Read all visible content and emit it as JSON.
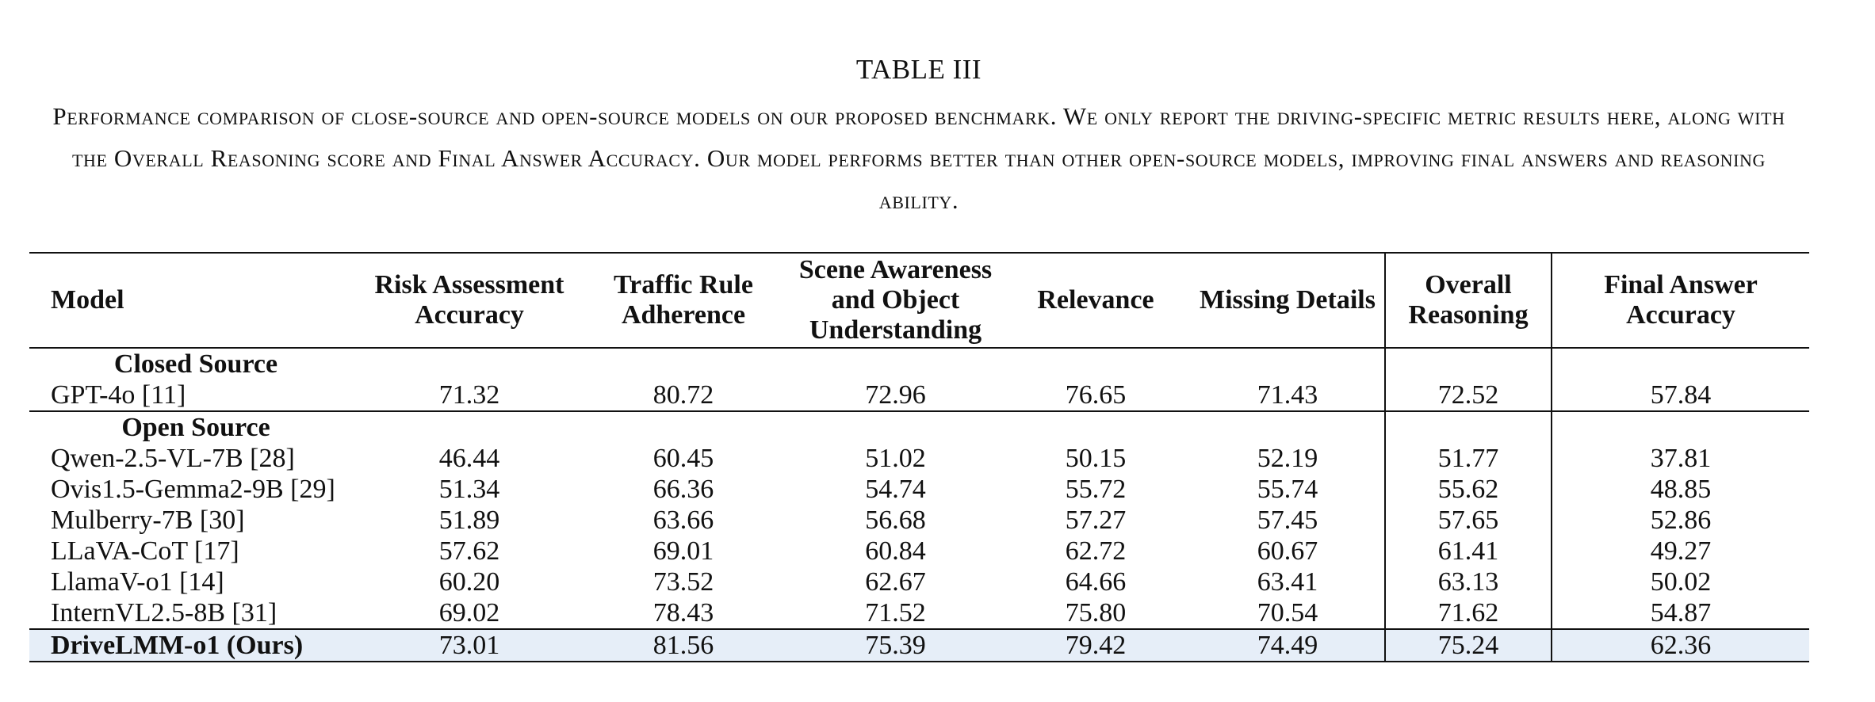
{
  "table_number": "TABLE III",
  "caption": "Performance comparison of close-source and open-source models on our proposed benchmark. We only report the driving-specific metric results here, along with the Overall Reasoning score and Final Answer Accuracy. Our model performs better than other open-source models, improving final answers and reasoning ability.",
  "columns": [
    "Model",
    "Risk Assessment Accuracy",
    "Traffic Rule Adherence",
    "Scene Awareness and Object Understanding",
    "Relevance",
    "Missing Details",
    "Overall Reasoning",
    "Final Answer Accuracy"
  ],
  "sections": [
    {
      "label": "Closed Source",
      "rows": [
        [
          "GPT-4o [11]",
          "71.32",
          "80.72",
          "72.96",
          "76.65",
          "71.43",
          "72.52",
          "57.84"
        ]
      ]
    },
    {
      "label": "Open Source",
      "rows": [
        [
          "Qwen-2.5-VL-7B [28]",
          "46.44",
          "60.45",
          "51.02",
          "50.15",
          "52.19",
          "51.77",
          "37.81"
        ],
        [
          "Ovis1.5-Gemma2-9B [29]",
          "51.34",
          "66.36",
          "54.74",
          "55.72",
          "55.74",
          "55.62",
          "48.85"
        ],
        [
          "Mulberry-7B [30]",
          "51.89",
          "63.66",
          "56.68",
          "57.27",
          "57.45",
          "57.65",
          "52.86"
        ],
        [
          "LLaVA-CoT [17]",
          "57.62",
          "69.01",
          "60.84",
          "62.72",
          "60.67",
          "61.41",
          "49.27"
        ],
        [
          "LlamaV-o1 [14]",
          "60.20",
          "73.52",
          "62.67",
          "64.66",
          "63.41",
          "63.13",
          "50.02"
        ],
        [
          "InternVL2.5-8B [31]",
          "69.02",
          "78.43",
          "71.52",
          "75.80",
          "70.54",
          "71.62",
          "54.87"
        ]
      ]
    }
  ],
  "ours": [
    "DriveLMM-o1 (Ours)",
    "73.01",
    "81.56",
    "75.39",
    "79.42",
    "74.49",
    "75.24",
    "62.36"
  ],
  "colors": {
    "ours_row_highlight": "#e6eef8",
    "rule_color": "#111111"
  }
}
